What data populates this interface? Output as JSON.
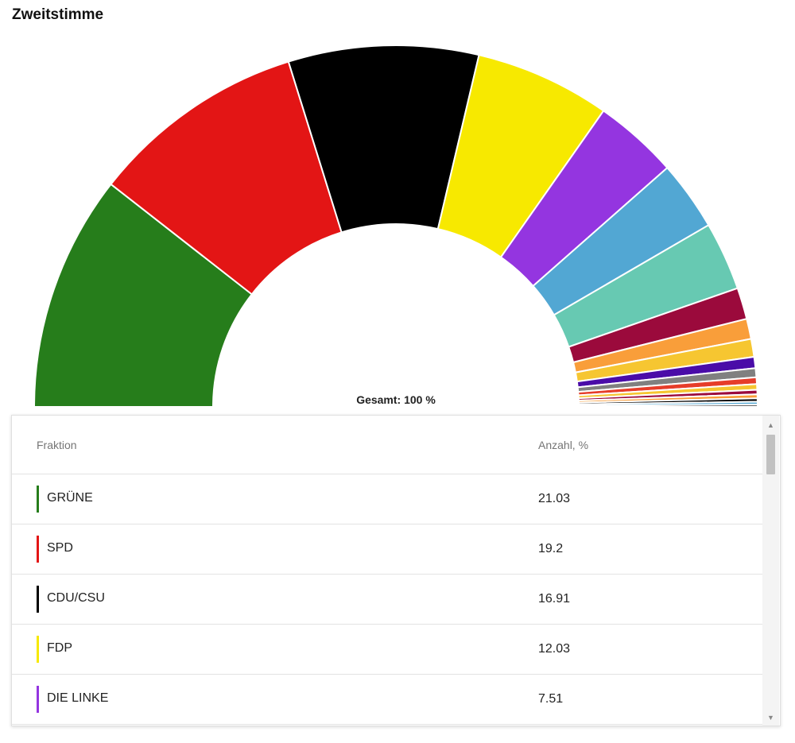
{
  "title": "Zweitstimme",
  "total_label": "Gesamt: 100 %",
  "table": {
    "header_party": "Fraktion",
    "header_value": "Anzahl, %",
    "rows": [
      {
        "name": "GRÜNE",
        "value": "21.03",
        "color": "#267d1b"
      },
      {
        "name": "SPD",
        "value": "19.2",
        "color": "#e31515"
      },
      {
        "name": "CDU/CSU",
        "value": "16.91",
        "color": "#000000"
      },
      {
        "name": "FDP",
        "value": "12.03",
        "color": "#f7e900"
      },
      {
        "name": "DIE LINKE",
        "value": "7.51",
        "color": "#9435e0"
      }
    ]
  },
  "chart_data": {
    "type": "pie",
    "shape": "half-donut",
    "title": "Zweitstimme",
    "total": "Gesamt: 100 %",
    "slices": [
      {
        "label": "GRÜNE",
        "value": 21.03,
        "color": "#267d1b"
      },
      {
        "label": "SPD",
        "value": 19.2,
        "color": "#e31515"
      },
      {
        "label": "CDU/CSU",
        "value": 16.91,
        "color": "#000000"
      },
      {
        "label": "FDP",
        "value": 12.03,
        "color": "#f7e900"
      },
      {
        "value": 7.51,
        "color": "#9435e0"
      },
      {
        "value": 6.2,
        "color": "#52a7d3"
      },
      {
        "value": 6.1,
        "color": "#67c9b2"
      },
      {
        "value": 2.8,
        "color": "#9b0a3c"
      },
      {
        "value": 1.8,
        "color": "#f99e3a"
      },
      {
        "value": 1.6,
        "color": "#f6c631"
      },
      {
        "value": 1.0,
        "color": "#4a0ca8"
      },
      {
        "value": 0.8,
        "color": "#808080"
      },
      {
        "value": 0.6,
        "color": "#e63d2a"
      },
      {
        "value": 0.5,
        "color": "#f6c631"
      },
      {
        "value": 0.4,
        "color": "#9b0a3c"
      },
      {
        "value": 0.35,
        "color": "#f99e3a"
      },
      {
        "value": 0.3,
        "color": "#000000"
      },
      {
        "value": 0.25,
        "color": "#52a7d3"
      },
      {
        "value": 0.2,
        "color": "#333333"
      }
    ]
  }
}
